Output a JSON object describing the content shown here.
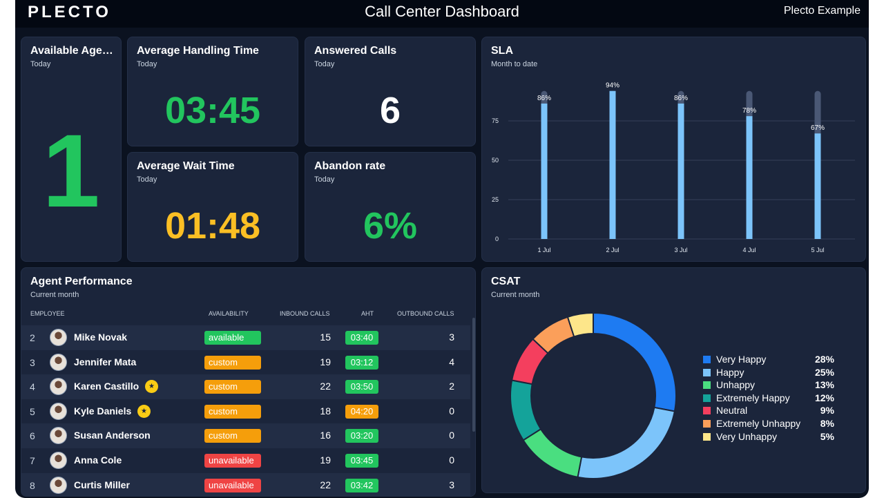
{
  "header": {
    "logo": "PLECTO",
    "title": "Call Center Dashboard",
    "account": "Plecto Example"
  },
  "widgets": {
    "available_agents": {
      "title": "Available Age…",
      "subtitle": "Today",
      "value": "1",
      "color": "#22c55e"
    },
    "avg_handling_time": {
      "title": "Average Handling Time",
      "subtitle": "Today",
      "value": "03:45",
      "color": "#22c55e"
    },
    "answered_calls": {
      "title": "Answered Calls",
      "subtitle": "Today",
      "value": "6",
      "color": "#ffffff"
    },
    "avg_wait_time": {
      "title": "Average Wait Time",
      "subtitle": "Today",
      "value": "01:48",
      "color": "#fbbf24"
    },
    "abandon_rate": {
      "title": "Abandon rate",
      "subtitle": "Today",
      "value": "6%",
      "color": "#22c55e"
    }
  },
  "sla": {
    "title": "SLA",
    "subtitle": "Month to date",
    "chart_data": {
      "type": "bar",
      "categories": [
        "1 Jul",
        "2 Jul",
        "3 Jul",
        "4 Jul",
        "5 Jul"
      ],
      "values": [
        86,
        94,
        86,
        78,
        67
      ],
      "data_labels": [
        "86%",
        "94%",
        "86%",
        "78%",
        "67%"
      ],
      "target": 94,
      "yticks": [
        "0",
        "25",
        "50",
        "75"
      ],
      "ylim": [
        0,
        100
      ],
      "bar_color": "#7cc4fa",
      "track_color": "#4a5875"
    }
  },
  "agents": {
    "title": "Agent Performance",
    "subtitle": "Current month",
    "columns": {
      "employee": "EMPLOYEE",
      "availability": "AVAILABILITY",
      "inbound": "INBOUND CALLS",
      "aht": "AHT",
      "outbound": "OUTBOUND CALLS"
    },
    "rows": [
      {
        "rank": "2",
        "name": "Mike Novak",
        "trophy": false,
        "availability": "available",
        "avail_color": "#22c55e",
        "inbound": "15",
        "aht": "03:40",
        "aht_color": "#22c55e",
        "outbound": "3"
      },
      {
        "rank": "3",
        "name": "Jennifer Mata",
        "trophy": false,
        "availability": "custom",
        "avail_color": "#f59e0b",
        "inbound": "19",
        "aht": "03:12",
        "aht_color": "#22c55e",
        "outbound": "4"
      },
      {
        "rank": "4",
        "name": "Karen Castillo",
        "trophy": true,
        "availability": "custom",
        "avail_color": "#f59e0b",
        "inbound": "22",
        "aht": "03:50",
        "aht_color": "#22c55e",
        "outbound": "2"
      },
      {
        "rank": "5",
        "name": "Kyle Daniels",
        "trophy": true,
        "availability": "custom",
        "avail_color": "#f59e0b",
        "inbound": "18",
        "aht": "04:20",
        "aht_color": "#f59e0b",
        "outbound": "0"
      },
      {
        "rank": "6",
        "name": "Susan Anderson",
        "trophy": false,
        "availability": "custom",
        "avail_color": "#f59e0b",
        "inbound": "16",
        "aht": "03:20",
        "aht_color": "#22c55e",
        "outbound": "0"
      },
      {
        "rank": "7",
        "name": "Anna Cole",
        "trophy": false,
        "availability": "unavailable",
        "avail_color": "#ef4444",
        "inbound": "19",
        "aht": "03:45",
        "aht_color": "#22c55e",
        "outbound": "0"
      },
      {
        "rank": "8",
        "name": "Curtis Miller",
        "trophy": false,
        "availability": "unavailable",
        "avail_color": "#ef4444",
        "inbound": "22",
        "aht": "03:42",
        "aht_color": "#22c55e",
        "outbound": "3"
      }
    ]
  },
  "csat": {
    "title": "CSAT",
    "subtitle": "Current month",
    "chart_data": {
      "type": "pie",
      "donut": true,
      "slices": [
        {
          "label": "Very Happy",
          "value": 28,
          "pct": "28%",
          "color": "#1e7bf2"
        },
        {
          "label": "Happy",
          "value": 25,
          "pct": "25%",
          "color": "#7cc4fa"
        },
        {
          "label": "Unhappy",
          "value": 13,
          "pct": "13%",
          "color": "#4ade80"
        },
        {
          "label": "Extremely Happy",
          "value": 12,
          "pct": "12%",
          "color": "#14a39a"
        },
        {
          "label": "Neutral",
          "value": 9,
          "pct": "9%",
          "color": "#f43f5e"
        },
        {
          "label": "Extremely Unhappy",
          "value": 8,
          "pct": "8%",
          "color": "#fb9f5a"
        },
        {
          "label": "Very Unhappy",
          "value": 5,
          "pct": "5%",
          "color": "#fde68a"
        }
      ]
    }
  }
}
